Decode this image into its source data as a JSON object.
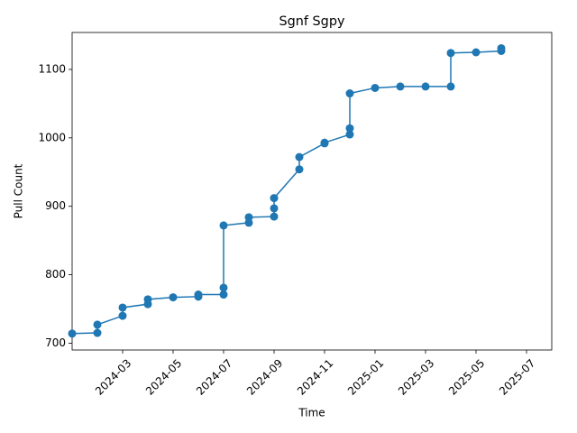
{
  "chart_data": {
    "type": "line",
    "title": "Sgnf Sgpy",
    "xlabel": "Time",
    "ylabel": "Pull Count",
    "x": [
      "2024-01",
      "2024-02",
      "2024-02",
      "2024-03",
      "2024-03",
      "2024-04",
      "2024-04",
      "2024-05",
      "2024-06",
      "2024-06",
      "2024-07",
      "2024-07",
      "2024-07",
      "2024-08",
      "2024-08",
      "2024-09",
      "2024-09",
      "2024-09",
      "2024-10",
      "2024-10",
      "2024-11",
      "2024-11",
      "2024-12",
      "2024-12",
      "2024-12",
      "2025-01",
      "2025-02",
      "2025-03",
      "2025-04",
      "2025-04",
      "2025-05",
      "2025-06",
      "2025-06"
    ],
    "values": [
      714,
      715,
      727,
      740,
      752,
      757,
      764,
      767,
      768,
      771,
      771,
      781,
      872,
      876,
      884,
      885,
      897,
      912,
      954,
      972,
      992,
      993,
      1005,
      1014,
      1065,
      1073,
      1075,
      1075,
      1075,
      1124,
      1125,
      1127,
      1131
    ],
    "color": "#1f77b4",
    "xlim": [
      "2024-01",
      "2025-08"
    ],
    "xticks": [
      "2024-03",
      "2024-05",
      "2024-07",
      "2024-09",
      "2024-11",
      "2025-01",
      "2025-03",
      "2025-05",
      "2025-07"
    ],
    "ylim": [
      690,
      1154
    ],
    "yticks": [
      700,
      800,
      900,
      1000,
      1100
    ]
  }
}
